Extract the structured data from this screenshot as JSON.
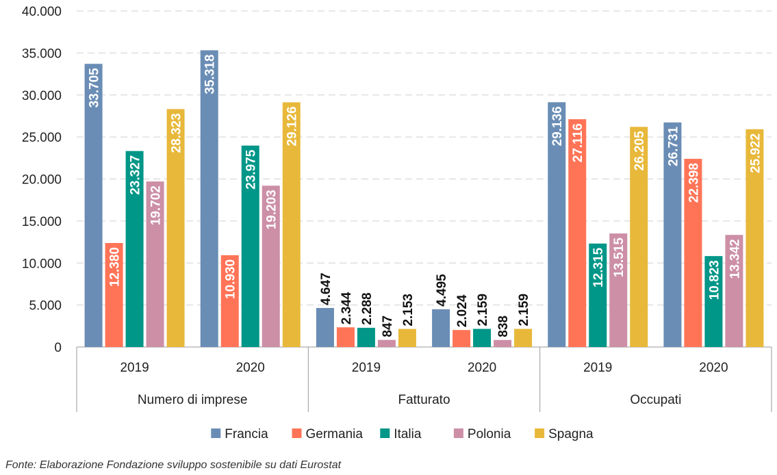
{
  "chart_data": {
    "type": "bar",
    "title": "",
    "xlabel": "",
    "ylabel": "",
    "ylim": [
      0,
      40000
    ],
    "yticks": [
      "0",
      "5.000",
      "10.000",
      "15.000",
      "20.000",
      "25.000",
      "30.000",
      "35.000",
      "40.000"
    ],
    "grid": true,
    "legend_position": "bottom",
    "groups": [
      {
        "label": "Numero di imprese",
        "years": [
          {
            "label": "2019",
            "values": [
              33705,
              12380,
              23327,
              19702,
              28323
            ],
            "labels": [
              "33.705",
              "12.380",
              "23.327",
              "19.702",
              "28.323"
            ]
          },
          {
            "label": "2020",
            "values": [
              35318,
              10930,
              23975,
              19203,
              29126
            ],
            "labels": [
              "35.318",
              "10.930",
              "23.975",
              "19.203",
              "29.126"
            ]
          }
        ]
      },
      {
        "label": "Fatturato",
        "years": [
          {
            "label": "2019",
            "values": [
              4647,
              2344,
              2288,
              847,
              2153
            ],
            "labels": [
              "4.647",
              "2.344",
              "2.288",
              "847",
              "2.153"
            ]
          },
          {
            "label": "2020",
            "values": [
              4495,
              2024,
              2159,
              838,
              2159
            ],
            "labels": [
              "4.495",
              "2.024",
              "2.159",
              "838",
              "2.159"
            ]
          }
        ]
      },
      {
        "label": "Occupati",
        "years": [
          {
            "label": "2019",
            "values": [
              29136,
              27116,
              12315,
              13515,
              26205
            ],
            "labels": [
              "29.136",
              "27.116",
              "12.315",
              "13.515",
              "26.205"
            ]
          },
          {
            "label": "2020",
            "values": [
              26731,
              22398,
              10823,
              13342,
              25922
            ],
            "labels": [
              "26.731",
              "22.398",
              "10.823",
              "13.342",
              "25.922"
            ]
          }
        ]
      }
    ],
    "series": [
      {
        "name": "Francia",
        "color": "#6a8db5"
      },
      {
        "name": "Germania",
        "color": "#ff7457"
      },
      {
        "name": "Italia",
        "color": "#009688"
      },
      {
        "name": "Polonia",
        "color": "#cc8fa6"
      },
      {
        "name": "Spagna",
        "color": "#e8b83a"
      }
    ]
  },
  "footnote": "Fonte: Elaborazione Fondazione sviluppo sostenibile su dati Eurostat"
}
